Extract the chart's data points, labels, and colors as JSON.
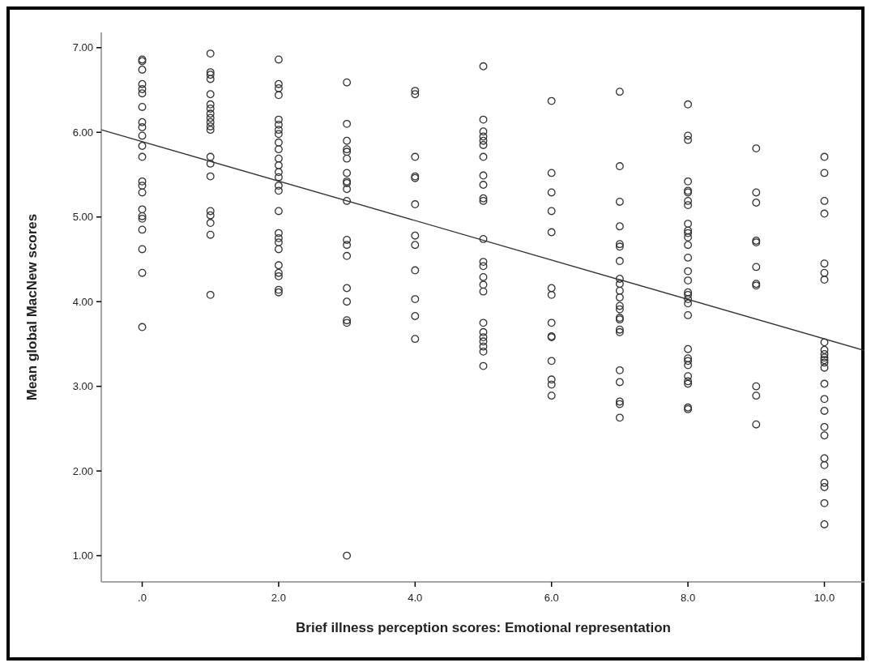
{
  "chart_data": {
    "type": "scatter",
    "xlabel": "Brief illness perception scores: Emotional representation",
    "ylabel": "Mean global MacNew scores",
    "xlim": [
      -0.6,
      10.6
    ],
    "ylim": [
      0.69,
      7.18
    ],
    "xticks": [
      {
        "value": 0,
        "label": ".0"
      },
      {
        "value": 2,
        "label": "2.0"
      },
      {
        "value": 4,
        "label": "4.0"
      },
      {
        "value": 6,
        "label": "6.0"
      },
      {
        "value": 8,
        "label": "8.0"
      },
      {
        "value": 10,
        "label": "10.0"
      }
    ],
    "yticks": [
      {
        "value": 1,
        "label": "1.00"
      },
      {
        "value": 2,
        "label": "2.00"
      },
      {
        "value": 3,
        "label": "3.00"
      },
      {
        "value": 4,
        "label": "4.00"
      },
      {
        "value": 5,
        "label": "5.00"
      },
      {
        "value": 6,
        "label": "6.00"
      },
      {
        "value": 7,
        "label": "7.00"
      }
    ],
    "series": [
      {
        "marker": "circle",
        "color": "#333333",
        "x": [
          0,
          0,
          0,
          0,
          0,
          0,
          0,
          0,
          0,
          0,
          0,
          0,
          0,
          0,
          0,
          0,
          0,
          0,
          0,
          0,
          0,
          0,
          1,
          1,
          1,
          1,
          1,
          1,
          1,
          1,
          1,
          1,
          1,
          1,
          1,
          1,
          1,
          1,
          1,
          1,
          1,
          1,
          2,
          2,
          2,
          2,
          2,
          2,
          2,
          2,
          2,
          2,
          2,
          2,
          2,
          2,
          2,
          2,
          2,
          2,
          2,
          2,
          2,
          2,
          2,
          2,
          2,
          2,
          3,
          3,
          3,
          3,
          3,
          3,
          3,
          3,
          3,
          3,
          3,
          3,
          3,
          3,
          3,
          3,
          3,
          3,
          3,
          4,
          4,
          4,
          4,
          4,
          4,
          4,
          4,
          4,
          4,
          4,
          4,
          5,
          5,
          5,
          5,
          5,
          5,
          5,
          5,
          5,
          5,
          5,
          5,
          5,
          5,
          5,
          5,
          5,
          5,
          5,
          5,
          5,
          5,
          5,
          5,
          6,
          6,
          6,
          6,
          6,
          6,
          6,
          6,
          6,
          6,
          6,
          6,
          6,
          6,
          7,
          7,
          7,
          7,
          7,
          7,
          7,
          7,
          7,
          7,
          7,
          7,
          7,
          7,
          7,
          7,
          7,
          7,
          7,
          7,
          7,
          7,
          8,
          8,
          8,
          8,
          8,
          8,
          8,
          8,
          8,
          8,
          8,
          8,
          8,
          8,
          8,
          8,
          8,
          8,
          8,
          8,
          8,
          8,
          8,
          8,
          8,
          8,
          8,
          8,
          8,
          8,
          9,
          9,
          9,
          9,
          9,
          9,
          9,
          9,
          9,
          9,
          9,
          10,
          10,
          10,
          10,
          10,
          10,
          10,
          10,
          10,
          10,
          10,
          10,
          10,
          10,
          10,
          10,
          10,
          10,
          10,
          10,
          10,
          10,
          10,
          10,
          10
        ],
        "values": [
          6.86,
          6.84,
          6.74,
          6.57,
          6.51,
          6.46,
          6.3,
          6.12,
          6.06,
          5.96,
          5.84,
          5.71,
          5.42,
          5.37,
          5.29,
          5.09,
          5.01,
          4.98,
          4.85,
          4.62,
          4.34,
          3.7,
          6.93,
          6.71,
          6.68,
          6.63,
          6.45,
          6.33,
          6.28,
          6.22,
          6.17,
          6.12,
          6.07,
          6.03,
          5.71,
          5.63,
          5.48,
          5.07,
          5.02,
          4.93,
          4.79,
          4.08,
          6.86,
          6.57,
          6.52,
          6.44,
          6.15,
          6.09,
          6.03,
          5.98,
          5.88,
          5.8,
          5.69,
          5.61,
          5.53,
          5.47,
          5.37,
          5.31,
          5.07,
          4.81,
          4.75,
          4.7,
          4.62,
          4.43,
          4.34,
          4.3,
          4.14,
          4.11,
          6.59,
          6.1,
          5.9,
          5.8,
          5.77,
          5.69,
          5.52,
          5.42,
          5.4,
          5.33,
          5.19,
          4.73,
          4.67,
          4.54,
          4.16,
          4.0,
          3.78,
          3.75,
          1.0,
          6.49,
          6.45,
          5.71,
          5.48,
          5.46,
          5.15,
          4.78,
          4.67,
          4.37,
          4.03,
          3.83,
          3.56,
          6.78,
          6.15,
          6.01,
          5.95,
          5.9,
          5.85,
          5.71,
          5.49,
          5.38,
          5.22,
          5.19,
          4.74,
          4.47,
          4.42,
          4.29,
          4.2,
          4.12,
          3.75,
          3.64,
          3.58,
          3.53,
          3.47,
          3.41,
          3.24,
          6.37,
          5.52,
          5.29,
          5.07,
          4.82,
          4.16,
          4.08,
          3.75,
          3.59,
          3.58,
          3.3,
          3.08,
          3.02,
          2.89,
          6.48,
          5.6,
          5.18,
          4.89,
          4.68,
          4.65,
          4.48,
          4.27,
          4.21,
          4.13,
          4.05,
          3.95,
          3.91,
          3.81,
          3.79,
          3.67,
          3.64,
          3.19,
          3.05,
          2.82,
          2.79,
          2.63,
          6.33,
          5.96,
          5.91,
          5.42,
          5.31,
          5.29,
          5.19,
          5.14,
          4.92,
          4.84,
          4.81,
          4.76,
          4.67,
          4.52,
          4.36,
          4.25,
          4.11,
          4.08,
          4.03,
          3.98,
          3.84,
          3.44,
          3.33,
          3.3,
          3.25,
          3.12,
          3.06,
          3.03,
          2.75,
          2.73,
          5.81,
          5.29,
          5.17,
          4.72,
          4.7,
          4.41,
          4.21,
          4.19,
          3.0,
          2.89,
          2.55,
          5.71,
          5.52,
          5.19,
          5.04,
          4.45,
          4.34,
          4.26,
          3.52,
          3.43,
          3.38,
          3.34,
          3.31,
          3.28,
          3.22,
          3.03,
          2.85,
          2.71,
          2.52,
          2.42,
          2.15,
          2.07,
          1.86,
          1.81,
          1.62,
          1.37
        ]
      },
      {
        "type": "line",
        "color": "#333333",
        "x": [
          -0.6,
          10.6
        ],
        "values": [
          6.03,
          3.42
        ]
      }
    ]
  }
}
